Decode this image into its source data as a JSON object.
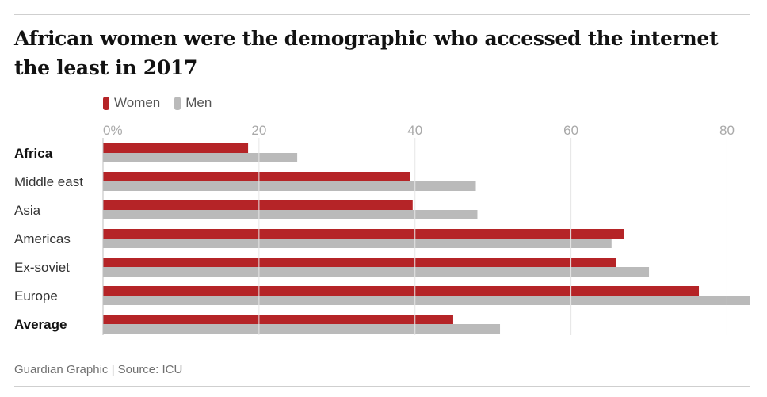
{
  "chart_data": {
    "type": "bar",
    "orientation": "horizontal",
    "title": "African women were the demographic who accessed the internet the least in 2017",
    "categories": [
      "Africa",
      "Middle east",
      "Asia",
      "Americas",
      "Ex-soviet",
      "Europe",
      "Average"
    ],
    "bold_categories": [
      "Africa",
      "Average"
    ],
    "series": [
      {
        "name": "Women",
        "color": "#b52427",
        "values": [
          18.6,
          39.4,
          39.7,
          66.8,
          65.8,
          76.4,
          44.9
        ]
      },
      {
        "name": "Men",
        "color": "#bababa",
        "values": [
          24.9,
          47.8,
          48.0,
          65.2,
          70.0,
          83.0,
          50.9
        ]
      }
    ],
    "xlim": [
      0,
      83
    ],
    "xticks": [
      0,
      20,
      40,
      60,
      80
    ],
    "xtick_labels": [
      "0%",
      "20",
      "40",
      "60",
      "80"
    ],
    "legend_position": "top-left",
    "grid": true
  },
  "source": "Guardian Graphic | Source: ICU"
}
